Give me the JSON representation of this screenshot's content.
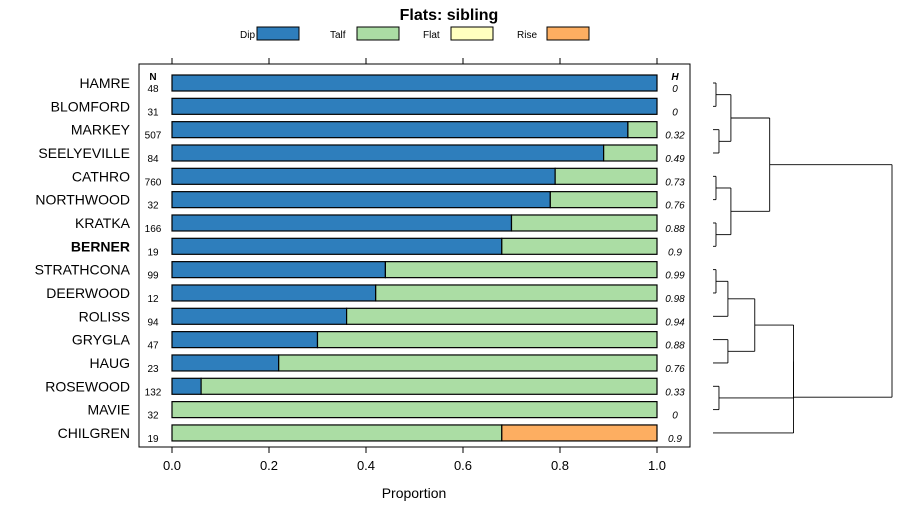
{
  "chart_data": {
    "type": "bar",
    "orientation": "horizontal",
    "stacked": true,
    "title": "Flats: sibling",
    "xlabel": "Proportion",
    "ylabel": "",
    "xlim": [
      0,
      1
    ],
    "xticks": [
      "0.0",
      "0.2",
      "0.4",
      "0.6",
      "0.8",
      "1.0"
    ],
    "n_header": "N",
    "h_header": "H",
    "highlighted_category": "BERNER",
    "legend": [
      {
        "name": "Dip",
        "color": "#2e7ebc"
      },
      {
        "name": "Talf",
        "color": "#abdda4"
      },
      {
        "name": "Flat",
        "color": "#ffffbf"
      },
      {
        "name": "Rise",
        "color": "#fdae61"
      }
    ],
    "categories": [
      "HAMRE",
      "BLOMFORD",
      "MARKEY",
      "SEELYEVILLE",
      "CATHRO",
      "NORTHWOOD",
      "KRATKA",
      "BERNER",
      "STRATHCONA",
      "DEERWOOD",
      "ROLISS",
      "GRYGLA",
      "HAUG",
      "ROSEWOOD",
      "MAVIE",
      "CHILGREN"
    ],
    "n_values": [
      "48",
      "31",
      "507",
      "84",
      "760",
      "32",
      "166",
      "19",
      "99",
      "12",
      "94",
      "47",
      "23",
      "132",
      "32",
      "19"
    ],
    "h_values": [
      "0",
      "0",
      "0.32",
      "0.49",
      "0.73",
      "0.76",
      "0.88",
      "0.9",
      "0.99",
      "0.98",
      "0.94",
      "0.88",
      "0.76",
      "0.33",
      "0",
      "0.9"
    ],
    "series": [
      {
        "name": "Dip",
        "values": [
          1.0,
          1.0,
          0.94,
          0.89,
          0.79,
          0.78,
          0.7,
          0.68,
          0.44,
          0.42,
          0.36,
          0.3,
          0.22,
          0.06,
          0.0,
          0.0
        ]
      },
      {
        "name": "Talf",
        "values": [
          0.0,
          0.0,
          0.06,
          0.11,
          0.21,
          0.22,
          0.3,
          0.32,
          0.56,
          0.58,
          0.64,
          0.7,
          0.78,
          0.94,
          1.0,
          0.68
        ]
      },
      {
        "name": "Flat",
        "values": [
          0,
          0,
          0,
          0,
          0,
          0,
          0,
          0,
          0,
          0,
          0,
          0,
          0,
          0,
          0,
          0
        ]
      },
      {
        "name": "Rise",
        "values": [
          0,
          0,
          0,
          0,
          0,
          0,
          0,
          0,
          0,
          0,
          0,
          0,
          0,
          0,
          0,
          0.32
        ]
      }
    ],
    "dendrogram": {
      "leaf_order": [
        "HAMRE",
        "BLOMFORD",
        "MARKEY",
        "SEELYEVILLE",
        "CATHRO",
        "NORTHWOOD",
        "KRATKA",
        "BERNER",
        "STRATHCONA",
        "DEERWOOD",
        "ROLISS",
        "GRYGLA",
        "HAUG",
        "ROSEWOOD",
        "MAVIE",
        "CHILGREN"
      ],
      "merges": [
        [
          0,
          1,
          0.01
        ],
        [
          2,
          3,
          0.02
        ],
        [
          -1,
          -2,
          0.06
        ],
        [
          4,
          5,
          0.01
        ],
        [
          6,
          7,
          0.01
        ],
        [
          -4,
          -5,
          0.06
        ],
        [
          -3,
          -6,
          0.19
        ],
        [
          8,
          9,
          0.01
        ],
        [
          -8,
          10,
          0.05
        ],
        [
          11,
          12,
          0.05
        ],
        [
          -9,
          -10,
          0.14
        ],
        [
          13,
          14,
          0.02
        ],
        [
          -11,
          -12,
          0.27
        ],
        [
          -13,
          15,
          0.27
        ],
        [
          -7,
          -14,
          0.6
        ]
      ],
      "max_height": 0.6
    }
  }
}
